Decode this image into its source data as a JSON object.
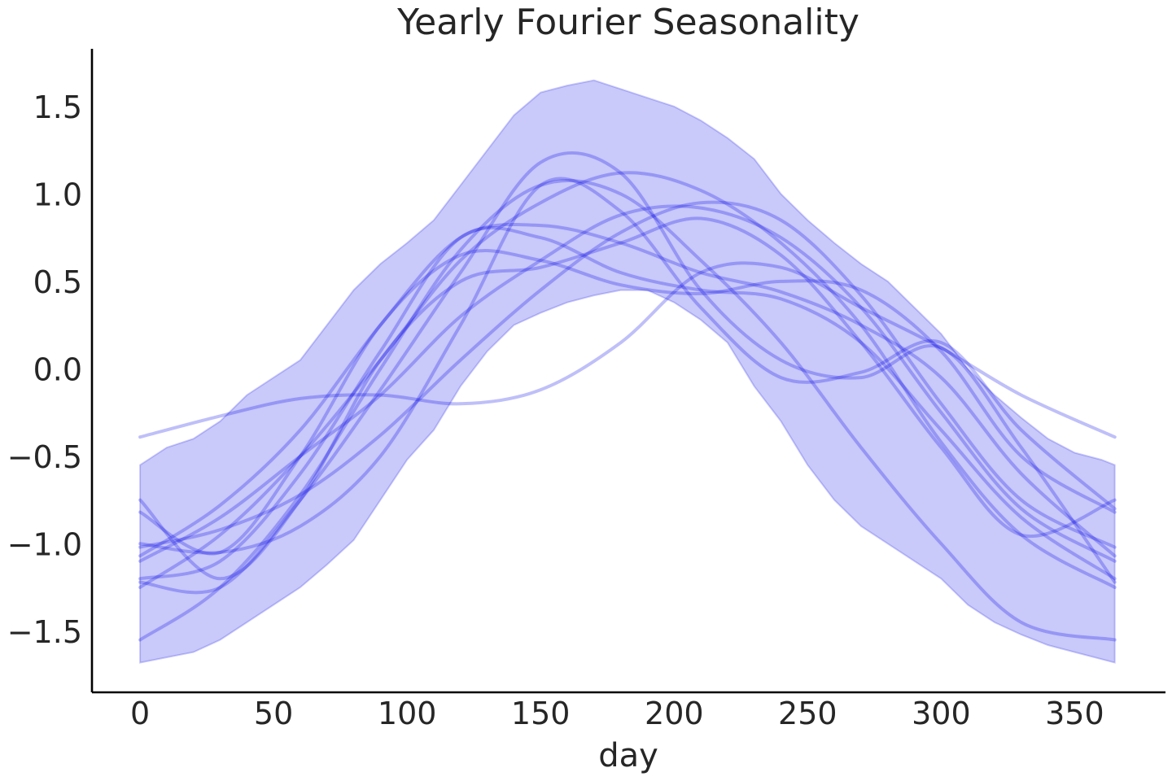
{
  "chart_data": {
    "type": "line",
    "title": "Yearly Fourier Seasonality",
    "xlabel": "day",
    "ylabel": "",
    "xlim": [
      -18,
      384
    ],
    "ylim": [
      -1.85,
      1.83
    ],
    "xticks": [
      0,
      50,
      100,
      150,
      200,
      250,
      300,
      350
    ],
    "xtick_labels": [
      "0",
      "50",
      "100",
      "150",
      "200",
      "250",
      "300",
      "350"
    ],
    "yticks": [
      -1.5,
      -1.0,
      -0.5,
      0.0,
      0.5,
      1.0,
      1.5
    ],
    "ytick_labels": [
      "−1.5",
      "−1.0",
      "−0.5",
      "0.0",
      "0.5",
      "1.0",
      "1.5"
    ],
    "grid": false,
    "legend": "none",
    "colors": {
      "band": "#0000e6",
      "lines": "#0000e6",
      "text": "#262626",
      "spine": "#000000"
    },
    "band": {
      "x": [
        0,
        10,
        20,
        30,
        40,
        50,
        60,
        70,
        80,
        90,
        100,
        110,
        120,
        130,
        140,
        150,
        160,
        170,
        180,
        190,
        200,
        210,
        220,
        230,
        240,
        250,
        260,
        270,
        280,
        290,
        300,
        310,
        320,
        330,
        340,
        350,
        360,
        365
      ],
      "upper": [
        -0.55,
        -0.45,
        -0.4,
        -0.3,
        -0.15,
        -0.05,
        0.05,
        0.25,
        0.45,
        0.6,
        0.72,
        0.85,
        1.05,
        1.25,
        1.45,
        1.58,
        1.62,
        1.65,
        1.6,
        1.55,
        1.5,
        1.42,
        1.32,
        1.2,
        1.0,
        0.85,
        0.72,
        0.6,
        0.5,
        0.35,
        0.2,
        0.0,
        -0.15,
        -0.28,
        -0.4,
        -0.48,
        -0.52,
        -0.55
      ],
      "lower": [
        -1.68,
        -1.65,
        -1.62,
        -1.55,
        -1.45,
        -1.35,
        -1.25,
        -1.12,
        -0.98,
        -0.75,
        -0.52,
        -0.35,
        -0.1,
        0.1,
        0.25,
        0.32,
        0.38,
        0.42,
        0.45,
        0.45,
        0.38,
        0.28,
        0.15,
        -0.1,
        -0.3,
        -0.55,
        -0.75,
        -0.9,
        -1.0,
        -1.1,
        -1.2,
        -1.35,
        -1.45,
        -1.52,
        -1.58,
        -1.62,
        -1.66,
        -1.68
      ]
    },
    "series": [
      {
        "x": [
          0,
          30,
          60,
          90,
          120,
          150,
          180,
          210,
          240,
          270,
          300,
          330,
          365
        ],
        "values": [
          -0.39,
          -0.27,
          -0.17,
          -0.15,
          -0.2,
          -0.12,
          0.15,
          0.55,
          0.58,
          0.35,
          0.12,
          -0.15,
          -0.39
        ]
      },
      {
        "x": [
          0,
          30,
          60,
          90,
          120,
          150,
          180,
          210,
          240,
          270,
          300,
          330,
          365
        ],
        "values": [
          -1.07,
          -0.78,
          -0.35,
          0.25,
          0.75,
          0.82,
          0.72,
          0.55,
          0.44,
          0.25,
          -0.05,
          -0.6,
          -1.07
        ]
      },
      {
        "x": [
          0,
          30,
          60,
          90,
          120,
          150,
          180,
          210,
          240,
          270,
          300,
          330,
          365
        ],
        "values": [
          -0.82,
          -1.05,
          -0.5,
          0.25,
          0.65,
          0.62,
          0.48,
          0.43,
          0.5,
          0.45,
          0.1,
          -0.5,
          -0.82
        ]
      },
      {
        "x": [
          0,
          30,
          60,
          90,
          120,
          150,
          180,
          210,
          240,
          270,
          300,
          330,
          365
        ],
        "values": [
          -1.55,
          -1.25,
          -0.72,
          0.0,
          0.68,
          1.05,
          1.0,
          0.62,
          0.15,
          -0.45,
          -1.0,
          -1.45,
          -1.55
        ]
      },
      {
        "x": [
          0,
          30,
          60,
          90,
          120,
          150,
          180,
          210,
          240,
          270,
          300,
          330,
          365
        ],
        "values": [
          -1.22,
          -1.25,
          -0.75,
          -0.12,
          0.55,
          1.18,
          1.12,
          0.45,
          0.05,
          -0.05,
          0.12,
          -0.45,
          -1.22
        ]
      },
      {
        "x": [
          0,
          30,
          60,
          90,
          120,
          150,
          180,
          210,
          240,
          270,
          300,
          330,
          365
        ],
        "values": [
          -1.25,
          -0.95,
          -0.5,
          0.05,
          0.62,
          0.95,
          1.12,
          1.02,
          0.72,
          0.25,
          -0.42,
          -0.95,
          -1.25
        ]
      },
      {
        "x": [
          0,
          30,
          60,
          90,
          120,
          150,
          180,
          210,
          240,
          270,
          300,
          330,
          365
        ],
        "values": [
          -1.02,
          -0.92,
          -0.72,
          -0.38,
          0.05,
          0.45,
          0.78,
          0.95,
          0.85,
          0.42,
          -0.2,
          -0.75,
          -1.02
        ]
      },
      {
        "x": [
          0,
          30,
          60,
          90,
          120,
          150,
          180,
          210,
          240,
          270,
          300,
          330,
          365
        ],
        "values": [
          -0.75,
          -1.2,
          -0.75,
          0.05,
          0.5,
          0.58,
          0.72,
          0.86,
          0.65,
          0.15,
          -0.45,
          -0.95,
          -0.75
        ]
      },
      {
        "x": [
          0,
          30,
          60,
          90,
          120,
          150,
          180,
          210,
          240,
          270,
          300,
          330,
          365
        ],
        "values": [
          -1.2,
          -1.1,
          -0.6,
          0.1,
          0.75,
          0.75,
          0.55,
          0.45,
          0.4,
          0.15,
          -0.35,
          -0.85,
          -1.2
        ]
      },
      {
        "x": [
          0,
          30,
          60,
          90,
          120,
          150,
          180,
          210,
          240,
          270,
          300,
          330,
          365
        ],
        "values": [
          -1.1,
          -0.85,
          -0.5,
          -0.15,
          0.3,
          0.62,
          0.88,
          0.92,
          0.75,
          0.35,
          -0.25,
          -0.8,
          -1.1
        ]
      },
      {
        "x": [
          0,
          30,
          60,
          90,
          120,
          150,
          180,
          210,
          240,
          270,
          300,
          330,
          365
        ],
        "values": [
          -1.0,
          -1.05,
          -0.9,
          -0.5,
          0.25,
          1.05,
          0.9,
          0.35,
          -0.05,
          -0.02,
          0.15,
          -0.35,
          -0.8
        ]
      }
    ]
  }
}
